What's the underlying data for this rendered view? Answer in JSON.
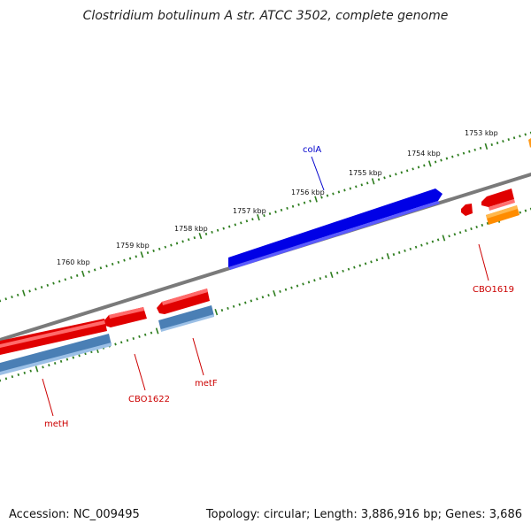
{
  "title": "Clostridium botulinum A str. ATCC 3502, complete genome",
  "footer": {
    "accession": "Accession: NC_009495",
    "summary": "Topology: circular; Length: 3,886,916 bp; Genes: 3,686"
  },
  "colors": {
    "backbone": "#808080",
    "tick": "#2e7d1f",
    "gene_forward": "#e00000",
    "gene_reverse": "#e00000",
    "cds_steelblue": "#4a7fb5",
    "colA": "#0000e6",
    "orange": "#ff8c00",
    "label_red": "#cc0000",
    "label_blue": "#0000cc"
  },
  "scale_labels": [
    {
      "text": "1753 kbp"
    },
    {
      "text": "1754 kbp"
    },
    {
      "text": "1755 kbp"
    },
    {
      "text": "1756 kbp"
    },
    {
      "text": "1757 kbp"
    },
    {
      "text": "1758 kbp"
    },
    {
      "text": "1759 kbp"
    },
    {
      "text": "1760 kbp"
    }
  ],
  "gene_labels": [
    {
      "name": "colA",
      "color": "#0000cc"
    },
    {
      "name": "CBO1619",
      "color": "#cc0000"
    },
    {
      "name": "metF",
      "color": "#cc0000"
    },
    {
      "name": "CBO1622",
      "color": "#cc0000"
    },
    {
      "name": "metH",
      "color": "#cc0000"
    }
  ]
}
